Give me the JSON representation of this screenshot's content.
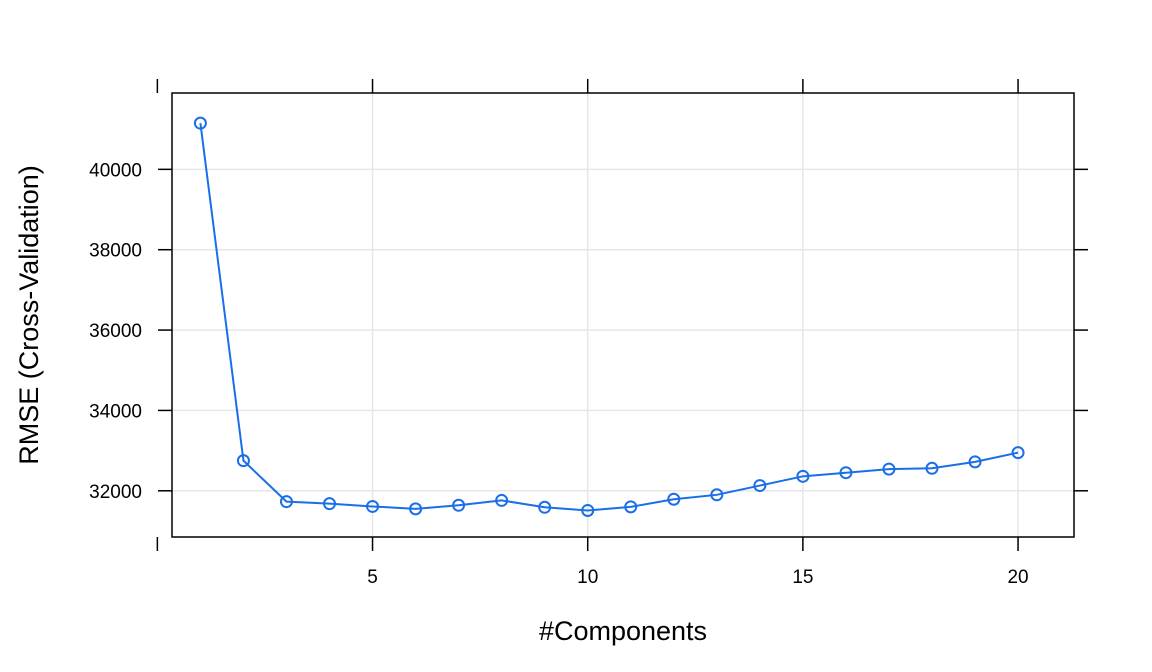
{
  "chart_data": {
    "type": "line",
    "title": "",
    "xlabel": "#Components",
    "ylabel": "RMSE (Cross-Validation)",
    "xlim": [
      0.34,
      21.3
    ],
    "ylim": [
      30850,
      41900
    ],
    "x_ticks": [
      5,
      10,
      15,
      20
    ],
    "x_tick_labels": [
      "5",
      "10",
      "15",
      "20"
    ],
    "y_ticks": [
      32000,
      34000,
      36000,
      38000,
      40000
    ],
    "y_tick_labels": [
      "32000",
      "34000",
      "36000",
      "38000",
      "40000"
    ],
    "grid": true,
    "marker": "open-circle",
    "series": [
      {
        "name": "",
        "color": "#1a6fe8",
        "x": [
          1,
          2,
          3,
          4,
          5,
          6,
          7,
          8,
          9,
          10,
          11,
          12,
          13,
          14,
          15,
          16,
          17,
          18,
          19,
          20
        ],
        "values": [
          41150,
          32750,
          31730,
          31680,
          31610,
          31550,
          31640,
          31760,
          31590,
          31510,
          31600,
          31790,
          31900,
          32130,
          32360,
          32450,
          32540,
          32560,
          32720,
          32950
        ]
      }
    ]
  }
}
